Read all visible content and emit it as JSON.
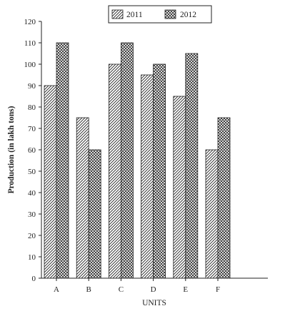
{
  "chart_data": {
    "type": "bar",
    "title": "",
    "xlabel": "UNITS",
    "ylabel": "Production (in lakh tons)",
    "categories": [
      "A",
      "B",
      "C",
      "D",
      "E",
      "F"
    ],
    "series": [
      {
        "name": "2011",
        "values": [
          90,
          75,
          100,
          95,
          85,
          60
        ],
        "pattern": "diagonal-hatch"
      },
      {
        "name": "2012",
        "values": [
          110,
          60,
          110,
          100,
          105,
          75
        ],
        "pattern": "cross-hatch"
      }
    ],
    "ylim": [
      0,
      120
    ],
    "yticks": [
      0,
      10,
      20,
      30,
      40,
      50,
      60,
      70,
      80,
      90,
      100,
      110,
      120
    ],
    "grid": false,
    "legend_position": "top-center",
    "colors": {
      "axis": "#222222",
      "bar_stroke": "#222222",
      "background": "#ffffff"
    }
  }
}
